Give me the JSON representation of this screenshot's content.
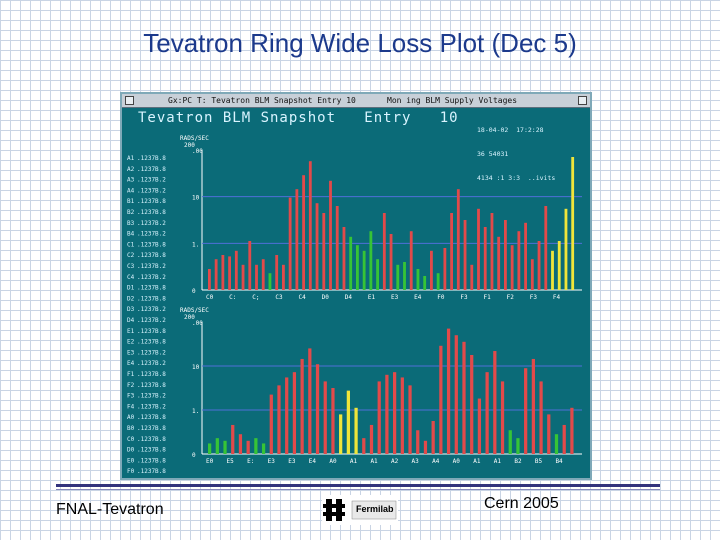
{
  "slide": {
    "title": "Tevatron Ring Wide Loss Plot (Dec 5)",
    "footer_left": "FNAL-Tevatron",
    "footer_right": "Cern 2005",
    "logo_text": "Fermilab"
  },
  "window": {
    "titlebar_text": "Gx:PC T:  Tevatron BLM Snapshot  Entry  10",
    "menu_text": "Mon ing BLM Supply Voltages",
    "heading": "Tevatron BLM Snapshot   Entry   10",
    "stamp_lines": [
      "18-04-02  17:2:28",
      "36 54031",
      "4134 :1 3:3  ..ivits"
    ]
  },
  "channel_labels": [
    {
      "id": "A1",
      "value": ".1237B.8"
    },
    {
      "id": "A2",
      "value": ".1237B.8"
    },
    {
      "id": "A3",
      "value": ".1237B.2"
    },
    {
      "id": "A4",
      "value": ".1237B.2"
    },
    {
      "id": "B1",
      "value": ".1237B.8"
    },
    {
      "id": "B2",
      "value": ".1237B.8"
    },
    {
      "id": "B3",
      "value": ".1237B.2"
    },
    {
      "id": "B4",
      "value": ".1237B.2"
    },
    {
      "id": "C1",
      "value": ".1237B.8"
    },
    {
      "id": "C2",
      "value": ".1237B.8"
    },
    {
      "id": "C3",
      "value": ".1237B.2"
    },
    {
      "id": "C4",
      "value": ".1237B.2"
    },
    {
      "id": "D1",
      "value": ".1237B.8"
    },
    {
      "id": "D2",
      "value": ".1237B.8"
    },
    {
      "id": "D3",
      "value": ".1237B.2"
    },
    {
      "id": "D4",
      "value": ".1237B.2"
    },
    {
      "id": "E1",
      "value": ".1237B.8"
    },
    {
      "id": "E2",
      "value": ".1237B.8"
    },
    {
      "id": "E3",
      "value": ".1237B.2"
    },
    {
      "id": "E4",
      "value": ".1237B.2"
    },
    {
      "id": "F1",
      "value": ".1237B.8"
    },
    {
      "id": "F2",
      "value": ".1237B.8"
    },
    {
      "id": "F3",
      "value": ".1237B.2"
    },
    {
      "id": "F4",
      "value": ".1237B.2"
    },
    {
      "id": "A0",
      "value": ".1237B.8"
    },
    {
      "id": "B0",
      "value": ".1237B.8"
    },
    {
      "id": "C0",
      "value": ".1237B.8"
    },
    {
      "id": "D0",
      "value": ".1237B.8"
    },
    {
      "id": "E0",
      "value": ".1237B.8"
    },
    {
      "id": "F0",
      "value": ".1237B.8"
    }
  ],
  "chart_data": [
    {
      "type": "bar",
      "ylabel": "RADS/SEC",
      "ylim_top": "200",
      "ticks": [
        ".00",
        "10",
        "1.",
        "0"
      ],
      "x_labels": [
        "C0",
        "C:",
        "C;",
        "C3",
        "C4",
        "D0",
        "D4",
        "E1",
        "E3",
        "E4",
        "F0",
        "F3",
        "F1",
        "F2",
        "F3",
        "F4"
      ],
      "bars": [
        {
          "v": 0.15,
          "c": "r"
        },
        {
          "v": 0.22,
          "c": "r"
        },
        {
          "v": 0.25,
          "c": "r"
        },
        {
          "v": 0.24,
          "c": "r"
        },
        {
          "v": 0.28,
          "c": "r"
        },
        {
          "v": 0.18,
          "c": "r"
        },
        {
          "v": 0.35,
          "c": "r"
        },
        {
          "v": 0.18,
          "c": "r"
        },
        {
          "v": 0.22,
          "c": "r"
        },
        {
          "v": 0.12,
          "c": "g"
        },
        {
          "v": 0.25,
          "c": "r"
        },
        {
          "v": 0.18,
          "c": "r"
        },
        {
          "v": 0.66,
          "c": "r"
        },
        {
          "v": 0.72,
          "c": "r"
        },
        {
          "v": 0.82,
          "c": "r"
        },
        {
          "v": 0.92,
          "c": "r"
        },
        {
          "v": 0.62,
          "c": "r"
        },
        {
          "v": 0.55,
          "c": "r"
        },
        {
          "v": 0.78,
          "c": "r"
        },
        {
          "v": 0.6,
          "c": "r"
        },
        {
          "v": 0.45,
          "c": "r"
        },
        {
          "v": 0.38,
          "c": "g"
        },
        {
          "v": 0.32,
          "c": "g"
        },
        {
          "v": 0.28,
          "c": "g"
        },
        {
          "v": 0.42,
          "c": "g"
        },
        {
          "v": 0.22,
          "c": "g"
        },
        {
          "v": 0.55,
          "c": "r"
        },
        {
          "v": 0.4,
          "c": "r"
        },
        {
          "v": 0.18,
          "c": "g"
        },
        {
          "v": 0.2,
          "c": "g"
        },
        {
          "v": 0.42,
          "c": "r"
        },
        {
          "v": 0.15,
          "c": "g"
        },
        {
          "v": 0.1,
          "c": "g"
        },
        {
          "v": 0.28,
          "c": "r"
        },
        {
          "v": 0.12,
          "c": "g"
        },
        {
          "v": 0.3,
          "c": "r"
        },
        {
          "v": 0.55,
          "c": "r"
        },
        {
          "v": 0.72,
          "c": "r"
        },
        {
          "v": 0.5,
          "c": "r"
        },
        {
          "v": 0.18,
          "c": "r"
        },
        {
          "v": 0.58,
          "c": "r"
        },
        {
          "v": 0.45,
          "c": "r"
        },
        {
          "v": 0.55,
          "c": "r"
        },
        {
          "v": 0.38,
          "c": "r"
        },
        {
          "v": 0.5,
          "c": "r"
        },
        {
          "v": 0.32,
          "c": "r"
        },
        {
          "v": 0.42,
          "c": "r"
        },
        {
          "v": 0.48,
          "c": "r"
        },
        {
          "v": 0.22,
          "c": "r"
        },
        {
          "v": 0.35,
          "c": "r"
        },
        {
          "v": 0.6,
          "c": "r"
        },
        {
          "v": 0.28,
          "c": "y"
        },
        {
          "v": 0.35,
          "c": "y"
        },
        {
          "v": 0.58,
          "c": "y"
        },
        {
          "v": 0.95,
          "c": "y"
        }
      ]
    },
    {
      "type": "bar",
      "ylabel": "RADS/SEC",
      "ylim_top": "200",
      "ticks": [
        ".00",
        "10",
        "1.",
        "0"
      ],
      "x_labels": [
        "E0",
        "E5",
        "E:",
        "E3",
        "E3",
        "E4",
        "A0",
        "A1",
        "A1",
        "A2",
        "A3",
        "A4",
        "A0",
        "A1",
        "A1",
        "B2",
        "B5",
        "B4"
      ],
      "bars": [
        {
          "v": 0.08,
          "c": "g"
        },
        {
          "v": 0.12,
          "c": "g"
        },
        {
          "v": 0.1,
          "c": "g"
        },
        {
          "v": 0.22,
          "c": "r"
        },
        {
          "v": 0.15,
          "c": "r"
        },
        {
          "v": 0.1,
          "c": "r"
        },
        {
          "v": 0.12,
          "c": "g"
        },
        {
          "v": 0.08,
          "c": "g"
        },
        {
          "v": 0.45,
          "c": "r"
        },
        {
          "v": 0.52,
          "c": "r"
        },
        {
          "v": 0.58,
          "c": "r"
        },
        {
          "v": 0.62,
          "c": "r"
        },
        {
          "v": 0.72,
          "c": "r"
        },
        {
          "v": 0.8,
          "c": "r"
        },
        {
          "v": 0.68,
          "c": "r"
        },
        {
          "v": 0.55,
          "c": "r"
        },
        {
          "v": 0.5,
          "c": "r"
        },
        {
          "v": 0.3,
          "c": "y"
        },
        {
          "v": 0.48,
          "c": "y"
        },
        {
          "v": 0.35,
          "c": "y"
        },
        {
          "v": 0.12,
          "c": "r"
        },
        {
          "v": 0.22,
          "c": "r"
        },
        {
          "v": 0.55,
          "c": "r"
        },
        {
          "v": 0.6,
          "c": "r"
        },
        {
          "v": 0.62,
          "c": "r"
        },
        {
          "v": 0.58,
          "c": "r"
        },
        {
          "v": 0.52,
          "c": "r"
        },
        {
          "v": 0.18,
          "c": "r"
        },
        {
          "v": 0.1,
          "c": "r"
        },
        {
          "v": 0.25,
          "c": "r"
        },
        {
          "v": 0.82,
          "c": "r"
        },
        {
          "v": 0.95,
          "c": "r"
        },
        {
          "v": 0.9,
          "c": "r"
        },
        {
          "v": 0.85,
          "c": "r"
        },
        {
          "v": 0.75,
          "c": "r"
        },
        {
          "v": 0.42,
          "c": "r"
        },
        {
          "v": 0.62,
          "c": "r"
        },
        {
          "v": 0.78,
          "c": "r"
        },
        {
          "v": 0.55,
          "c": "r"
        },
        {
          "v": 0.18,
          "c": "g"
        },
        {
          "v": 0.12,
          "c": "g"
        },
        {
          "v": 0.65,
          "c": "r"
        },
        {
          "v": 0.72,
          "c": "r"
        },
        {
          "v": 0.55,
          "c": "r"
        },
        {
          "v": 0.3,
          "c": "r"
        },
        {
          "v": 0.15,
          "c": "g"
        },
        {
          "v": 0.22,
          "c": "r"
        },
        {
          "v": 0.35,
          "c": "r"
        }
      ]
    }
  ],
  "colors": {
    "red": "#e24a4a",
    "green": "#36c436",
    "yellow": "#f0e53a",
    "screen": "#0b6b78",
    "title": "#1c3a8c"
  }
}
